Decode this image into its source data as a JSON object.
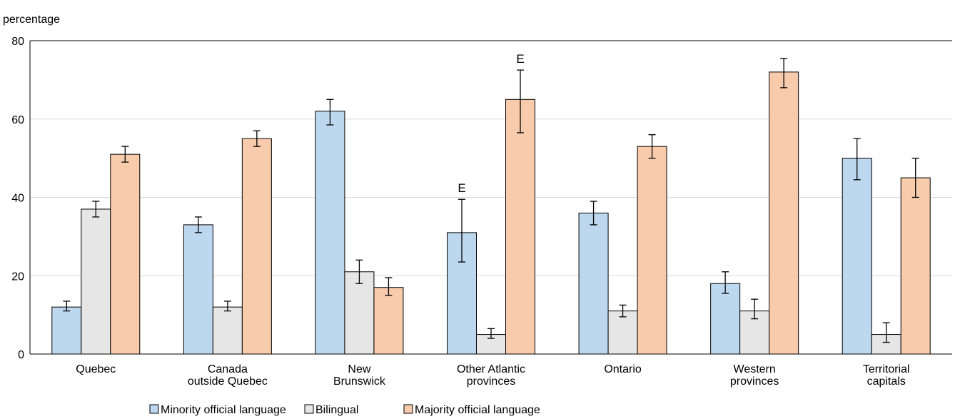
{
  "chart_data": {
    "type": "bar",
    "ylabel": "percentage",
    "ylim": [
      0,
      80
    ],
    "yticks": [
      0,
      20,
      40,
      60,
      80
    ],
    "grid": true,
    "legend_position": "bottom",
    "categories": [
      [
        "Quebec"
      ],
      [
        "Canada",
        "outside Quebec"
      ],
      [
        "New",
        "Brunswick"
      ],
      [
        "Other Atlantic",
        "provinces"
      ],
      [
        "Ontario"
      ],
      [
        "Western",
        "provinces"
      ],
      [
        "Territorial",
        "capitals"
      ]
    ],
    "series": [
      {
        "name": "Minority official language",
        "color": "#bdd7ee",
        "values": [
          12,
          33,
          62,
          31,
          36,
          18,
          50
        ],
        "error_low": [
          11,
          31,
          58.5,
          23.5,
          33,
          15.5,
          44.5
        ],
        "error_high": [
          13.5,
          35,
          65,
          39.5,
          39,
          21,
          55
        ],
        "flags": [
          "",
          "",
          "",
          "E",
          "",
          "",
          ""
        ]
      },
      {
        "name": "Bilingual",
        "color": "#e6e6e6",
        "values": [
          37,
          12,
          21,
          5,
          11,
          11,
          5
        ],
        "error_low": [
          35,
          11,
          18,
          4,
          9.5,
          9,
          3
        ],
        "error_high": [
          39,
          13.5,
          24,
          6.5,
          12.5,
          14,
          8
        ],
        "flags": [
          "",
          "",
          "",
          "",
          "",
          "",
          ""
        ]
      },
      {
        "name": "Majority official language",
        "color": "#f8cbad",
        "values": [
          51,
          55,
          17,
          65,
          53,
          72,
          45
        ],
        "error_low": [
          49,
          53,
          15,
          56.5,
          50,
          68,
          40
        ],
        "error_high": [
          53,
          57,
          19.5,
          72.5,
          56,
          75.5,
          50
        ],
        "flags": [
          "",
          "",
          "",
          "E",
          "",
          "",
          ""
        ]
      }
    ]
  }
}
